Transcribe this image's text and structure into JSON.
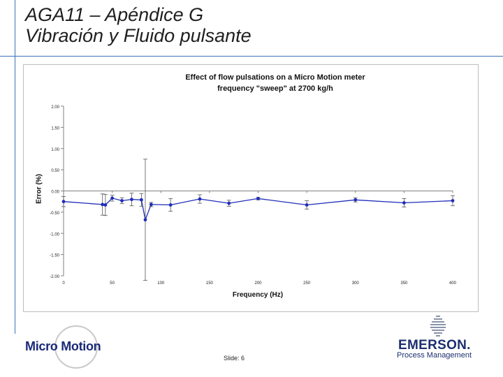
{
  "slide": {
    "title_line1": "AGA11 – Apéndice G",
    "title_line2": "Vibración y Fluido pulsante",
    "slide_number": "Slide: 6"
  },
  "logos": {
    "left_brand": "Micro Motion",
    "right_brand": "EMERSON.",
    "right_sub": "Process Management"
  },
  "colors": {
    "series": "#1f2db8",
    "accent_lines": "#3b72b8",
    "brand_navy": "#1c2f6e"
  },
  "chart_data": {
    "type": "line",
    "title_line1": "Effect of flow pulsations on a Micro Motion meter",
    "title_line2": "frequency \"sweep\" at 2700 kg/h",
    "xlabel": "Frequency (Hz)",
    "ylabel": "Error (%)",
    "xlim": [
      0,
      400
    ],
    "ylim": [
      -2.0,
      2.0
    ],
    "x_ticks": [
      "0",
      "50",
      "100",
      "150",
      "200",
      "250",
      "300",
      "350",
      "400"
    ],
    "y_ticks": [
      "2.00",
      "1.50",
      "1.00",
      "0.50",
      "0.00",
      "-0.50",
      "-1.00",
      "-1.50",
      "-2.00"
    ],
    "grid": false,
    "series": [
      {
        "points": [
          {
            "x": 0,
            "y": -0.25,
            "err": 0.12
          },
          {
            "x": 40,
            "y": -0.32,
            "err": 0.25
          },
          {
            "x": 43,
            "y": -0.33,
            "err": 0.25
          },
          {
            "x": 50,
            "y": -0.17,
            "err": 0.07
          },
          {
            "x": 60,
            "y": -0.23,
            "err": 0.07
          },
          {
            "x": 70,
            "y": -0.2,
            "err": 0.15
          },
          {
            "x": 80,
            "y": -0.21,
            "err": 0.15
          },
          {
            "x": 84,
            "y": -0.68,
            "err": 1.43
          },
          {
            "x": 90,
            "y": -0.32,
            "err": 0.05
          },
          {
            "x": 110,
            "y": -0.33,
            "err": 0.15
          },
          {
            "x": 140,
            "y": -0.19,
            "err": 0.1
          },
          {
            "x": 170,
            "y": -0.29,
            "err": 0.07
          },
          {
            "x": 200,
            "y": -0.18,
            "err": 0.03
          },
          {
            "x": 250,
            "y": -0.33,
            "err": 0.1
          },
          {
            "x": 300,
            "y": -0.21,
            "err": 0.05
          },
          {
            "x": 350,
            "y": -0.28,
            "err": 0.1
          },
          {
            "x": 400,
            "y": -0.23,
            "err": 0.12
          }
        ]
      }
    ]
  }
}
